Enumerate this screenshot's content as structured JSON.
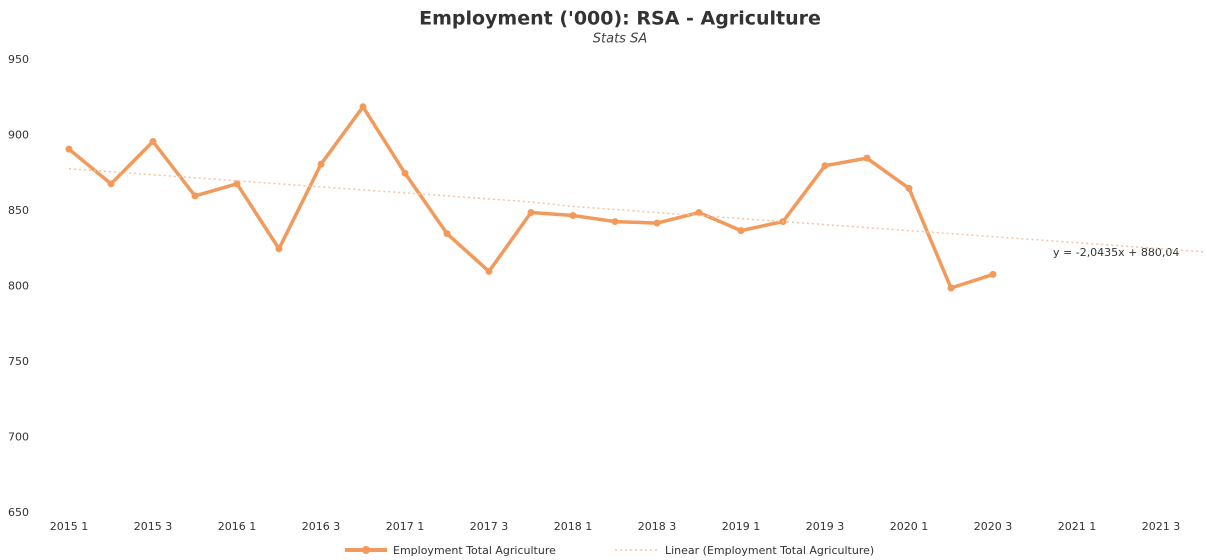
{
  "chart_data": {
    "type": "line",
    "title": "Employment ('000): RSA - Agriculture",
    "subtitle": "Stats SA",
    "categories": [
      "2015 1",
      null,
      "2015 3",
      null,
      "2016 1",
      null,
      "2016 3",
      null,
      "2017 1",
      null,
      "2017 3",
      null,
      "2018 1",
      null,
      "2018 3",
      null,
      "2019 1",
      null,
      "2019 3",
      null,
      "2020 1",
      null,
      "2020 3",
      null,
      "2021 1",
      null,
      "2021 3",
      null
    ],
    "series": [
      {
        "name": "Employment Total Agriculture",
        "color": "#f29a5b",
        "values": [
          891,
          868,
          896,
          860,
          868,
          825,
          881,
          919,
          875,
          835,
          810,
          849,
          847,
          843,
          842,
          849,
          837,
          843,
          880,
          885,
          865,
          799,
          808,
          null,
          null,
          null,
          null,
          null
        ]
      },
      {
        "name": "Linear (Employment Total Agriculture)",
        "color": "#f6c3a0",
        "dashed": true,
        "values": [
          878,
          876,
          874,
          872,
          870,
          868,
          866,
          864,
          862,
          860,
          858,
          856,
          853,
          851,
          849,
          847,
          845,
          843,
          841,
          839,
          837,
          835,
          833,
          831,
          829,
          827,
          825,
          823
        ]
      }
    ],
    "annotation": "y = -2,0435x + 880,04",
    "ylim": [
      650,
      950
    ],
    "yticks": [
      650,
      700,
      750,
      800,
      850,
      900,
      950
    ],
    "grid": false,
    "legend": "bottom"
  }
}
